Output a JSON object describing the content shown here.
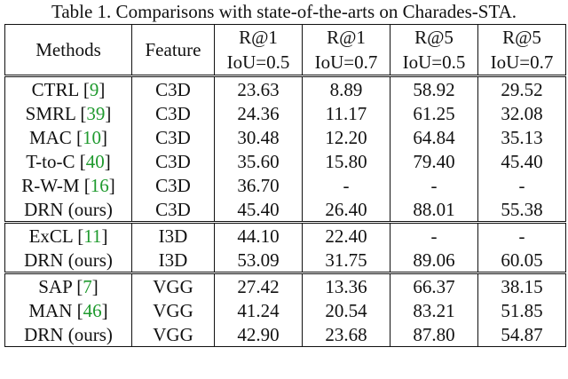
{
  "caption": "Table 1. Comparisons with state-of-the-arts on Charades-STA.",
  "headers": {
    "methods": "Methods",
    "feature": "Feature",
    "metrics": [
      {
        "top": "R@1",
        "bottom": "IoU=0.5"
      },
      {
        "top": "R@1",
        "bottom": "IoU=0.7"
      },
      {
        "top": "R@5",
        "bottom": "IoU=0.5"
      },
      {
        "top": "R@5",
        "bottom": "IoU=0.7"
      }
    ]
  },
  "groups": [
    {
      "rows": [
        {
          "name": "CTRL",
          "ref": "9",
          "feature": "C3D",
          "values": [
            "23.63",
            "8.89",
            "58.92",
            "29.52"
          ],
          "bold": false
        },
        {
          "name": "SMRL",
          "ref": "39",
          "feature": "C3D",
          "values": [
            "24.36",
            "11.17",
            "61.25",
            "32.08"
          ],
          "bold": false
        },
        {
          "name": "MAC",
          "ref": "10",
          "feature": "C3D",
          "values": [
            "30.48",
            "12.20",
            "64.84",
            "35.13"
          ],
          "bold": false
        },
        {
          "name": "T-to-C",
          "ref": "40",
          "feature": "C3D",
          "values": [
            "35.60",
            "15.80",
            "79.40",
            "45.40"
          ],
          "bold": false
        },
        {
          "name": "R-W-M",
          "ref": "16",
          "feature": "C3D",
          "values": [
            "36.70",
            "-",
            "-",
            "-"
          ],
          "bold": false
        },
        {
          "name": "DRN (ours)",
          "ref": "",
          "feature": "C3D",
          "values": [
            "45.40",
            "26.40",
            "88.01",
            "55.38"
          ],
          "bold": true
        }
      ]
    },
    {
      "rows": [
        {
          "name": "ExCL",
          "ref": "11",
          "feature": "I3D",
          "values": [
            "44.10",
            "22.40",
            "-",
            "-"
          ],
          "bold": false
        },
        {
          "name": "DRN (ours)",
          "ref": "",
          "feature": "I3D",
          "values": [
            "53.09",
            "31.75",
            "89.06",
            "60.05"
          ],
          "bold": true
        }
      ]
    },
    {
      "rows": [
        {
          "name": "SAP",
          "ref": "7",
          "feature": "VGG",
          "values": [
            "27.42",
            "13.36",
            "66.37",
            "38.15"
          ],
          "bold": false
        },
        {
          "name": "MAN",
          "ref": "46",
          "feature": "VGG",
          "values": [
            "41.24",
            "20.54",
            "83.21",
            "51.85"
          ],
          "bold": false
        },
        {
          "name": "DRN (ours)",
          "ref": "",
          "feature": "VGG",
          "values": [
            "42.90",
            "23.68",
            "87.80",
            "54.87"
          ],
          "bold": true
        }
      ]
    }
  ]
}
